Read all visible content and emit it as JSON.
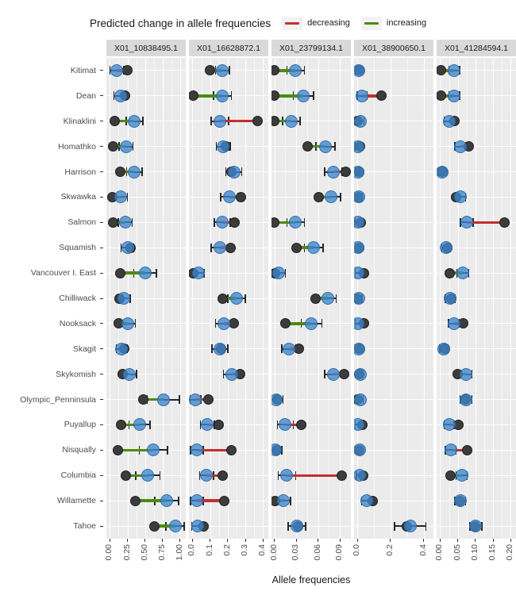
{
  "header": {
    "title": "Predicted change in allele frequencies",
    "legend": [
      {
        "label": "decreasing",
        "color": "#c22f2e"
      },
      {
        "label": "increasing",
        "color": "#4c8b0b"
      }
    ]
  },
  "colors": {
    "panel_background": "#ebebeb",
    "strip_background": "#d9d9d9",
    "gridline": "#ffffff",
    "current_point": "#3c3c3c",
    "predicted_point": "#3e85cd",
    "decreasing_segment": "#c22f2e",
    "increasing_segment": "#4c8b0b",
    "axis_text": "#4d4d4d"
  },
  "chart_data": {
    "type": "scatter",
    "title": "Predicted change in allele frequencies",
    "xlabel": "Allele frequencies",
    "legend_position": "top",
    "grid": true,
    "series_legend": {
      "decreasing": "#c22f2e",
      "increasing": "#4c8b0b"
    },
    "populations": [
      "Kitimat",
      "Dean",
      "Klinaklini",
      "Homathko",
      "Harrison",
      "Skwawka",
      "Salmon",
      "Squamish",
      "Vancouver I. East",
      "Chilliwack",
      "Nooksack",
      "Skagit",
      "Skykomish",
      "Olympic_Penninsula",
      "Puyallup",
      "Nisqually",
      "Columbia",
      "Willamette",
      "Tahoe"
    ],
    "row_keys": [
      "current",
      "predicted",
      "ci_halfwidth"
    ],
    "facets": [
      {
        "label": "X01_10838495.1",
        "xlim": [
          -0.05,
          1.08
        ],
        "ticks": [
          0,
          0.25,
          0.5,
          0.75,
          1.0
        ],
        "tick_labels": [
          "0.00",
          "0.25",
          "0.50",
          "0.75",
          "1.00"
        ],
        "rows": [
          [
            0.25,
            0.1,
            0.1
          ],
          [
            0.21,
            0.15,
            0.09
          ],
          [
            0.07,
            0.35,
            0.12
          ],
          [
            0.05,
            0.23,
            0.1
          ],
          [
            0.15,
            0.35,
            0.11
          ],
          [
            0.04,
            0.15,
            0.1
          ],
          [
            0.05,
            0.22,
            0.1
          ],
          [
            0.29,
            0.25,
            0.09
          ],
          [
            0.15,
            0.5,
            0.16
          ],
          [
            0.14,
            0.2,
            0.09
          ],
          [
            0.13,
            0.26,
            0.1
          ],
          [
            0.2,
            0.17,
            0.08
          ],
          [
            0.18,
            0.28,
            0.1
          ],
          [
            0.48,
            0.76,
            0.23
          ],
          [
            0.16,
            0.42,
            0.15
          ],
          [
            0.11,
            0.62,
            0.2
          ],
          [
            0.23,
            0.54,
            0.17
          ],
          [
            0.36,
            0.81,
            0.17
          ],
          [
            0.63,
            0.93,
            0.13
          ]
        ]
      },
      {
        "label": "X01_16628872.1",
        "xlim": [
          -0.02,
          0.43
        ],
        "ticks": [
          0,
          0.1,
          0.2,
          0.3,
          0.4
        ],
        "tick_labels": [
          "0.0",
          "0.1",
          "0.2",
          "0.3",
          "0.4"
        ],
        "rows": [
          [
            0.1,
            0.17,
            0.04
          ],
          [
            0.005,
            0.17,
            0.05
          ],
          [
            0.37,
            0.155,
            0.05
          ],
          [
            0.19,
            0.175,
            0.04
          ],
          [
            0.22,
            0.235,
            0.045
          ],
          [
            0.275,
            0.21,
            0.05
          ],
          [
            0.24,
            0.17,
            0.045
          ],
          [
            0.215,
            0.155,
            0.05
          ],
          [
            0.003,
            0.035,
            0.03
          ],
          [
            0.17,
            0.25,
            0.05
          ],
          [
            0.235,
            0.18,
            0.05
          ],
          [
            0.16,
            0.155,
            0.045
          ],
          [
            0.27,
            0.225,
            0.05
          ],
          [
            0.09,
            0.017,
            0.03
          ],
          [
            0.15,
            0.085,
            0.04
          ],
          [
            0.22,
            0.025,
            0.035
          ],
          [
            0.17,
            0.08,
            0.04
          ],
          [
            0.18,
            0.025,
            0.035
          ],
          [
            0.065,
            0.03,
            0.035
          ]
        ]
      },
      {
        "label": "X01_23799134.1",
        "xlim": [
          -0.004,
          0.105
        ],
        "ticks": [
          0,
          0.03,
          0.06,
          0.09
        ],
        "tick_labels": [
          "0.00",
          "0.03",
          "0.06",
          "0.09"
        ],
        "rows": [
          [
            0.0,
            0.029,
            0.012
          ],
          [
            0.0,
            0.04,
            0.014
          ],
          [
            0.0,
            0.023,
            0.012
          ],
          [
            0.046,
            0.07,
            0.013
          ],
          [
            0.098,
            0.081,
            0.012
          ],
          [
            0.061,
            0.078,
            0.013
          ],
          [
            0.0,
            0.029,
            0.012
          ],
          [
            0.03,
            0.054,
            0.013
          ],
          [
            0.001,
            0.006,
            0.009
          ],
          [
            0.056,
            0.073,
            0.012
          ],
          [
            0.015,
            0.051,
            0.014
          ],
          [
            0.034,
            0.02,
            0.01
          ],
          [
            0.096,
            0.081,
            0.012
          ],
          [
            0.004,
            0.002,
            0.01
          ],
          [
            0.037,
            0.015,
            0.011
          ],
          [
            0.003,
            0.001,
            0.009
          ],
          [
            0.092,
            0.017,
            0.012
          ],
          [
            0.001,
            0.012,
            0.01
          ],
          [
            0.033,
            0.031,
            0.012
          ]
        ]
      },
      {
        "label": "X01_38900650.1",
        "xlim": [
          -0.02,
          0.46
        ],
        "ticks": [
          0,
          0.2,
          0.4
        ],
        "tick_labels": [
          "0.0",
          "0.2",
          "0.4"
        ],
        "rows": [
          [
            0.01,
            0.01,
            0.02
          ],
          [
            0.145,
            0.03,
            0.03
          ],
          [
            0.002,
            0.02,
            0.02
          ],
          [
            0.015,
            0.004,
            0.02
          ],
          [
            0.01,
            0.005,
            0.018
          ],
          [
            0.005,
            0.01,
            0.018
          ],
          [
            0.02,
            0.005,
            0.02
          ],
          [
            0.01,
            0.005,
            0.018
          ],
          [
            0.04,
            0.006,
            0.02
          ],
          [
            0.003,
            0.01,
            0.018
          ],
          [
            0.04,
            0.006,
            0.02
          ],
          [
            0.012,
            0.01,
            0.018
          ],
          [
            0.012,
            0.016,
            0.018
          ],
          [
            0.002,
            0.016,
            0.02
          ],
          [
            0.028,
            0.006,
            0.02
          ],
          [
            0.012,
            0.012,
            0.018
          ],
          [
            0.035,
            0.014,
            0.02
          ],
          [
            0.095,
            0.055,
            0.03
          ],
          [
            0.3,
            0.32,
            0.095
          ]
        ]
      },
      {
        "label": "X01_41284594.1",
        "xlim": [
          -0.01,
          0.215
        ],
        "ticks": [
          0,
          0.05,
          0.1,
          0.15,
          0.2
        ],
        "tick_labels": [
          "0.00",
          "0.05",
          "0.10",
          "0.15",
          "0.20"
        ],
        "rows": [
          [
            0.002,
            0.04,
            0.015
          ],
          [
            0.002,
            0.04,
            0.015
          ],
          [
            0.041,
            0.025,
            0.014
          ],
          [
            0.08,
            0.057,
            0.015
          ],
          [
            0.007,
            0.005,
            0.01
          ],
          [
            0.045,
            0.057,
            0.015
          ],
          [
            0.182,
            0.075,
            0.018
          ],
          [
            0.02,
            0.017,
            0.012
          ],
          [
            0.027,
            0.064,
            0.017
          ],
          [
            0.031,
            0.029,
            0.014
          ],
          [
            0.066,
            0.039,
            0.015
          ],
          [
            0.013,
            0.011,
            0.012
          ],
          [
            0.05,
            0.073,
            0.017
          ],
          [
            0.072,
            0.073,
            0.017
          ],
          [
            0.052,
            0.025,
            0.014
          ],
          [
            0.077,
            0.03,
            0.015
          ],
          [
            0.03,
            0.061,
            0.016
          ],
          [
            0.056,
            0.057,
            0.015
          ],
          [
            0.098,
            0.101,
            0.017
          ]
        ]
      }
    ]
  }
}
